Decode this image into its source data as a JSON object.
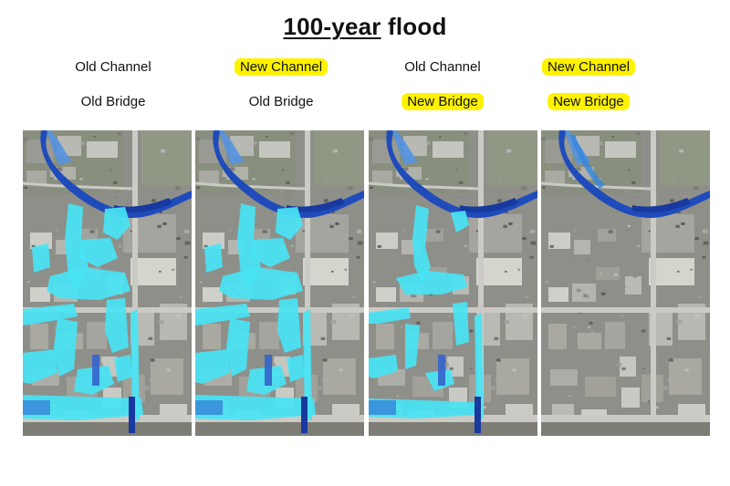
{
  "title": {
    "underlined": "100-year",
    "rest": " flood"
  },
  "scenarios": [
    {
      "channel": {
        "text": "Old Channel",
        "highlight": false
      },
      "bridge": {
        "text": "Old Bridge",
        "highlight": false
      },
      "flood_extent": "widespread"
    },
    {
      "channel": {
        "text": "New Channel",
        "highlight": true
      },
      "bridge": {
        "text": "Old Bridge",
        "highlight": false
      },
      "flood_extent": "widespread"
    },
    {
      "channel": {
        "text": "Old Channel",
        "highlight": false
      },
      "bridge": {
        "text": "New Bridge",
        "highlight": true
      },
      "flood_extent": "reduced"
    },
    {
      "channel": {
        "text": "New Channel",
        "highlight": true
      },
      "bridge": {
        "text": "New Bridge",
        "highlight": true
      },
      "flood_extent": "contained"
    }
  ],
  "colors": {
    "highlight": "#fff200",
    "flood_shallow": "#3fe3f4",
    "flood_deep": "#0c2f9a",
    "river": "#1442b8",
    "urban_base": "#8a8a84"
  }
}
